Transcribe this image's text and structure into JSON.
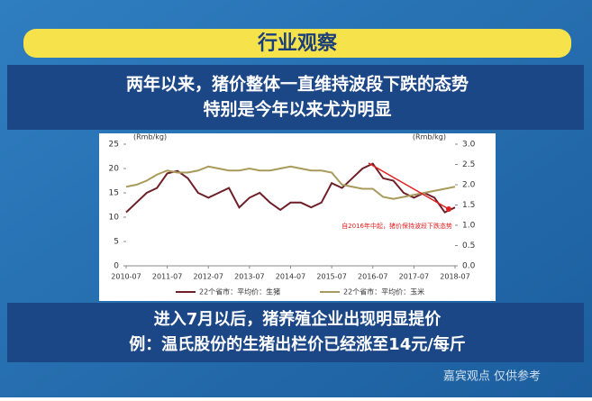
{
  "slide": {
    "title": "行业观察",
    "top_lines": [
      "两年以来，猪价整体一直维持波段下跌的态势",
      "特别是今年以来尤为明显"
    ],
    "bottom_lines": [
      "进入7月以后，猪养殖企业出现明显提价",
      "例：温氏股份的生猪出栏价已经涨至14元/每斤"
    ],
    "watermark": "嘉宾观点 仅供参考"
  },
  "chart_data": {
    "type": "line",
    "y_label": "(Rmb/kg)",
    "y2_label": "(Rmb/kg)",
    "annotation": "自2016年中起，猪价保持波段下跌态势",
    "x": [
      2010.5,
      2010.75,
      2011,
      2011.25,
      2011.5,
      2011.75,
      2012,
      2012.25,
      2012.5,
      2012.75,
      2013,
      2013.25,
      2013.5,
      2013.75,
      2014,
      2014.25,
      2014.5,
      2014.75,
      2015,
      2015.25,
      2015.5,
      2015.75,
      2016,
      2016.25,
      2016.5,
      2016.75,
      2017,
      2017.25,
      2017.5,
      2017.75,
      2018,
      2018.25,
      2018.5
    ],
    "xlim": [
      2010.5,
      2018.5
    ],
    "xticks": [
      {
        "value": 2010.5,
        "label": "2010-07"
      },
      {
        "value": 2011.5,
        "label": "2011-07"
      },
      {
        "value": 2012.5,
        "label": "2012-07"
      },
      {
        "value": 2013.5,
        "label": "2013-07"
      },
      {
        "value": 2014.5,
        "label": "2014-07"
      },
      {
        "value": 2015.5,
        "label": "2015-07"
      },
      {
        "value": 2016.5,
        "label": "2016-07"
      },
      {
        "value": 2017.5,
        "label": "2017-07"
      },
      {
        "value": 2018.5,
        "label": "2018-07"
      }
    ],
    "ylim": [
      0,
      25
    ],
    "yticks": [
      0,
      5,
      10,
      15,
      20,
      25
    ],
    "y2lim": [
      0,
      3
    ],
    "y2ticks": [
      {
        "value": 0,
        "label": "0.0"
      },
      {
        "value": 0.5,
        "label": "0.5"
      },
      {
        "value": 1,
        "label": "1.0"
      },
      {
        "value": 1.5,
        "label": "1.5"
      },
      {
        "value": 2,
        "label": "2.0"
      },
      {
        "value": 2.5,
        "label": "2.5"
      },
      {
        "value": 3,
        "label": "3.0"
      }
    ],
    "series": [
      {
        "name": "22个省市：平均价：生猪",
        "color": "#6e1f28",
        "values": [
          11,
          13,
          15,
          16,
          19,
          19.5,
          18,
          15,
          14,
          15,
          16,
          12,
          14,
          15,
          13,
          11.5,
          13,
          13,
          12,
          13,
          17,
          16,
          18,
          20,
          21,
          18,
          17.5,
          15,
          14,
          15,
          14,
          11,
          12
        ]
      },
      {
        "name": "22个省市：平均价：玉米",
        "color": "#a89a5a",
        "axis": "y2",
        "values": [
          1.95,
          2,
          2.1,
          2.25,
          2.35,
          2.3,
          2.3,
          2.35,
          2.45,
          2.4,
          2.35,
          2.35,
          2.4,
          2.35,
          2.35,
          2.4,
          2.45,
          2.4,
          2.35,
          2.35,
          2.3,
          2,
          1.95,
          1.9,
          1.9,
          1.7,
          1.65,
          1.7,
          1.75,
          1.8,
          1.85,
          1.9,
          1.95
        ]
      }
    ]
  }
}
